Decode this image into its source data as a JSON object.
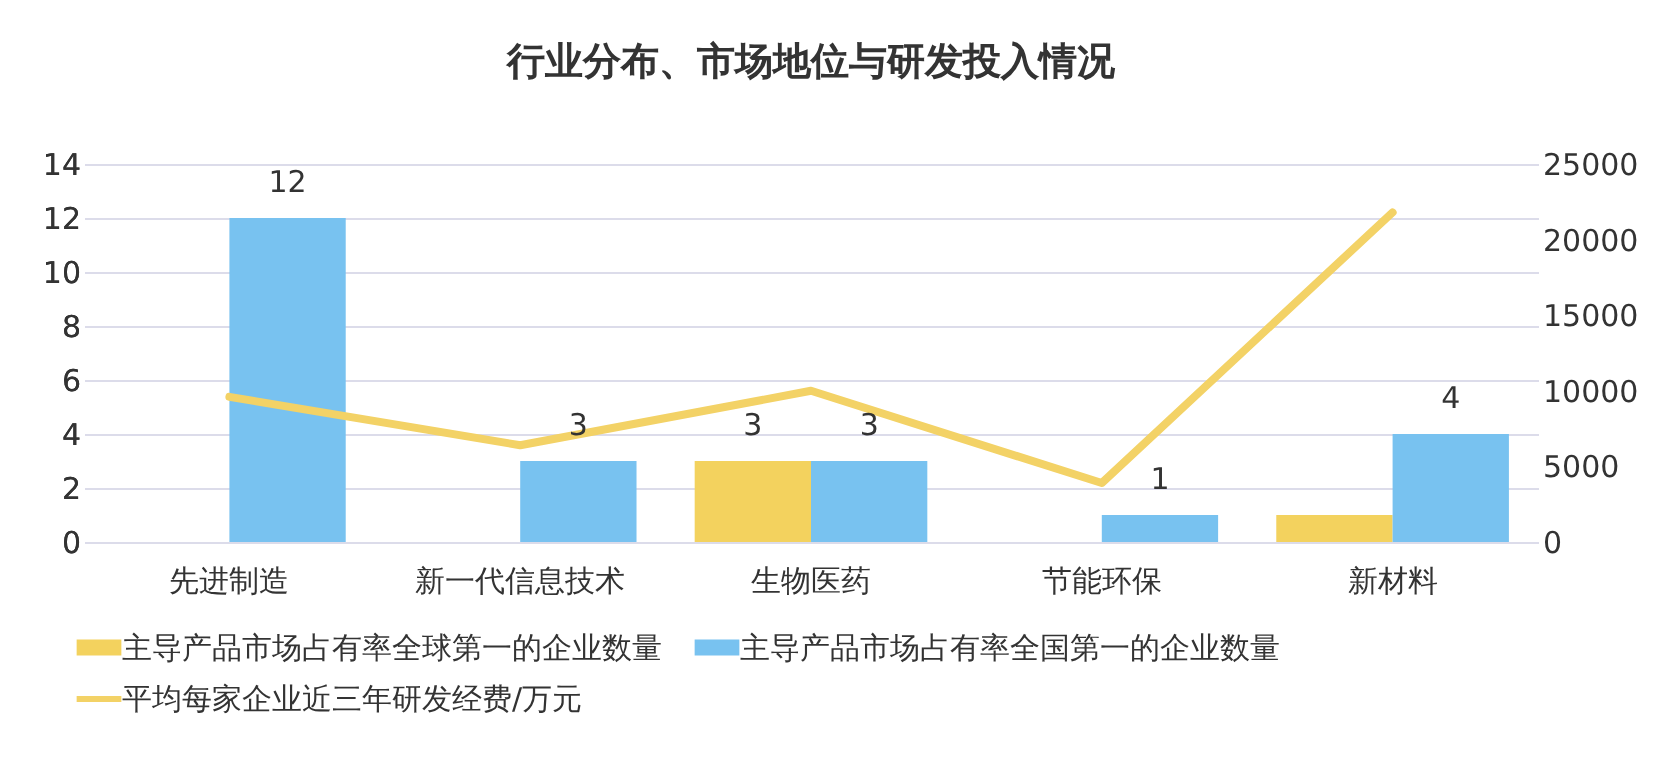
{
  "chart_data": {
    "type": "bar",
    "title": "行业分布、市场地位与研发投入情况",
    "categories": [
      "先进制造",
      "新一代信息技术",
      "生物医药",
      "节能环保",
      "新材料"
    ],
    "series": [
      {
        "name": "主导产品市场占有率全球第一的企业数量",
        "color": "#f3d25e",
        "values": [
          null,
          null,
          3,
          null,
          1
        ],
        "value_labels": [
          null,
          null,
          "3",
          null,
          null
        ]
      },
      {
        "name": "主导产品市场占有率全国第一的企业数量",
        "color": "#78c2f0",
        "values": [
          12,
          3,
          3,
          1,
          4
        ],
        "value_labels": [
          "12",
          "3",
          "3",
          "1",
          "4"
        ]
      },
      {
        "name": "平均每家企业近三年研发经费/万元",
        "type": "line",
        "axis": "y2",
        "color": "#f3d266",
        "values": [
          9600,
          6400,
          10000,
          3900,
          21800
        ]
      }
    ],
    "ylim": [
      0,
      14
    ],
    "yticks": [
      0,
      2,
      4,
      6,
      8,
      10,
      12,
      14
    ],
    "y2lim": [
      0,
      25000
    ],
    "y2ticks": [
      0,
      {
        "value": 5000,
        "label": "5000"
      },
      {
        "value": 10000,
        "label": "10000"
      },
      {
        "value": 15000,
        "label": "15000"
      },
      {
        "value": 20000,
        "label": "20000"
      },
      {
        "value": 25000,
        "label": "25000"
      }
    ],
    "grid": "y",
    "legend": "bottom"
  }
}
